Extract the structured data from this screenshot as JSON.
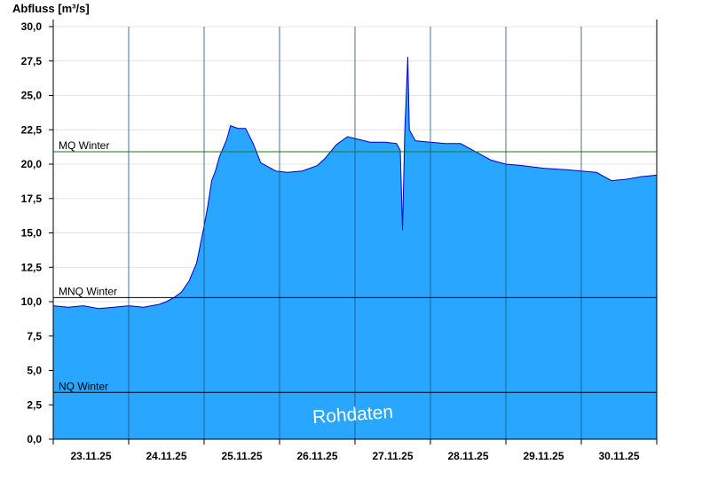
{
  "chart_data": {
    "type": "area",
    "ylabel": "Abfluss [m³/s]",
    "ylim": [
      0,
      30
    ],
    "yticks": [
      "0,0",
      "2,5",
      "5,0",
      "7,5",
      "10,0",
      "12,5",
      "15,0",
      "17,5",
      "20,0",
      "22,5",
      "25,0",
      "27,5",
      "30,0"
    ],
    "ytick_values": [
      0,
      2.5,
      5,
      7.5,
      10,
      12.5,
      15,
      17.5,
      20,
      22.5,
      25,
      27.5,
      30
    ],
    "xlim": [
      0,
      8
    ],
    "x_unit": "days from 23.11.25 00:00",
    "xticks": [
      "23.11.25",
      "24.11.25",
      "25.11.25",
      "26.11.25",
      "27.11.25",
      "28.11.25",
      "29.11.25",
      "30.11.25"
    ],
    "series": [
      {
        "fill": "#29a6ff",
        "stroke": "#0000cc",
        "x": [
          0,
          0.2,
          0.4,
          0.6,
          0.8,
          1.0,
          1.2,
          1.3,
          1.4,
          1.5,
          1.6,
          1.7,
          1.8,
          1.9,
          2.0,
          2.05,
          2.1,
          2.15,
          2.2,
          2.3,
          2.35,
          2.45,
          2.55,
          2.65,
          2.75,
          2.85,
          2.95,
          3.1,
          3.3,
          3.5,
          3.6,
          3.75,
          3.9,
          4.05,
          4.2,
          4.4,
          4.55,
          4.6,
          4.63,
          4.66,
          4.7,
          4.72,
          4.8,
          5.0,
          5.2,
          5.4,
          5.6,
          5.8,
          6.0,
          6.2,
          6.5,
          6.8,
          7.0,
          7.2,
          7.4,
          7.6,
          7.8,
          8.0
        ],
        "values": [
          9.7,
          9.6,
          9.7,
          9.5,
          9.6,
          9.7,
          9.6,
          9.7,
          9.8,
          10.0,
          10.3,
          10.7,
          11.5,
          12.8,
          15.5,
          17.0,
          18.8,
          19.5,
          20.5,
          21.8,
          22.8,
          22.6,
          22.6,
          21.5,
          20.1,
          19.8,
          19.5,
          19.4,
          19.5,
          19.9,
          20.4,
          21.4,
          22.0,
          21.8,
          21.6,
          21.6,
          21.5,
          21.0,
          15.2,
          22.4,
          27.8,
          22.5,
          21.7,
          21.6,
          21.5,
          21.5,
          20.9,
          20.3,
          20.0,
          19.9,
          19.7,
          19.6,
          19.5,
          19.4,
          18.8,
          18.9,
          19.1,
          19.2
        ]
      }
    ],
    "reference_lines": [
      {
        "name": "MQ Winter",
        "value": 20.9,
        "color": "#1a7a1a"
      },
      {
        "name": "MNQ Winter",
        "value": 10.3,
        "color": "#000000"
      },
      {
        "name": "NQ Winter",
        "value": 3.4,
        "color": "#000000"
      }
    ],
    "annotations": [
      "Rohdaten"
    ],
    "grid": true,
    "legend": "none"
  }
}
